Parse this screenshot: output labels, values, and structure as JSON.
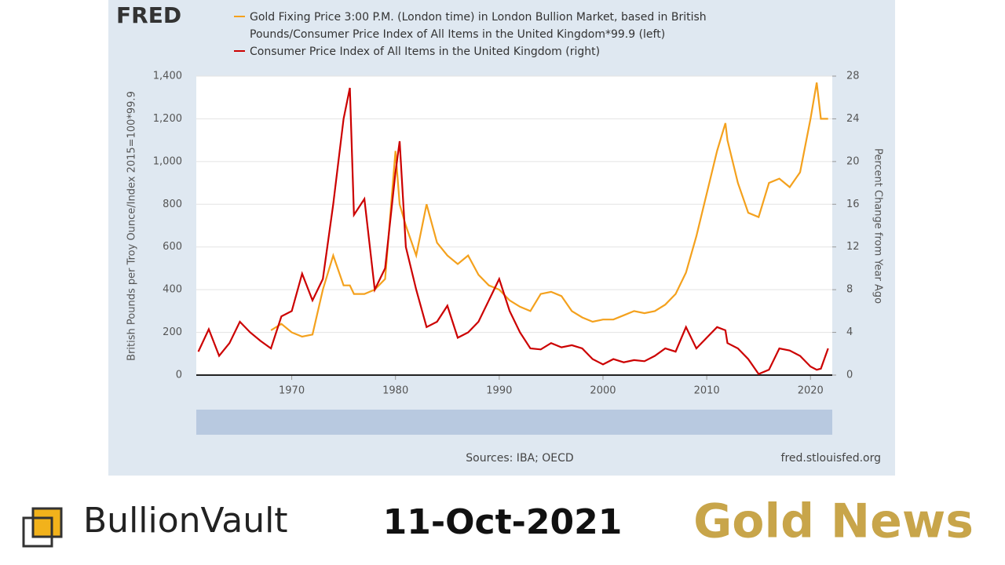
{
  "chart_data": {
    "type": "line",
    "logo": "FRED",
    "xlim": [
      1960.8,
      2022.1
    ],
    "xticks": [
      1970,
      1980,
      1990,
      2000,
      2010,
      2020
    ],
    "ylim": [
      0,
      1400
    ],
    "yticks": [
      0,
      200,
      400,
      600,
      800,
      {
        "value": 1000,
        "label": "1,000"
      },
      {
        "value": 1200,
        "label": "1,200"
      },
      {
        "value": 1400,
        "label": "1,400"
      }
    ],
    "y2lim": [
      0,
      28
    ],
    "y2ticks": [
      0,
      4,
      8,
      12,
      16,
      20,
      24,
      28
    ],
    "ylabel": "British Pounds per Troy Ounce/Index 2015=100*99.9",
    "y2label": "Percent Change from Year Ago",
    "x": [
      1961,
      1962,
      1963,
      1964,
      1965,
      1966,
      1967,
      1968,
      1969,
      1970,
      1971,
      1972,
      1973,
      1974,
      1975,
      1975.6,
      1976,
      1977,
      1978,
      1979,
      1980,
      1980.4,
      1981,
      1982,
      1983,
      1984,
      1985,
      1986,
      1987,
      1988,
      1989,
      1990,
      1991,
      1992,
      1993,
      1994,
      1995,
      1996,
      1997,
      1998,
      1999,
      2000,
      2001,
      2002,
      2003,
      2004,
      2005,
      2006,
      2007,
      2008,
      2009,
      2010,
      2011,
      2011.8,
      2012,
      2013,
      2014,
      2015,
      2016,
      2017,
      2018,
      2019,
      2020,
      2020.6,
      2021,
      2021.7
    ],
    "series": [
      {
        "name": "Gold Fixing Price 3:00 P.M. (London time) in London Bullion Market, based in British Pounds/Consumer Price Index of All Items in the United Kingdom*99.9 (left)",
        "color": "#f4a11d",
        "axis": "y",
        "values": [
          null,
          null,
          null,
          null,
          null,
          null,
          null,
          210,
          240,
          200,
          180,
          190,
          400,
          560,
          420,
          420,
          380,
          380,
          400,
          450,
          1050,
          800,
          700,
          560,
          800,
          620,
          560,
          520,
          560,
          470,
          420,
          400,
          350,
          320,
          300,
          380,
          390,
          370,
          300,
          270,
          250,
          260,
          260,
          280,
          300,
          290,
          300,
          330,
          380,
          480,
          650,
          850,
          1050,
          1180,
          1100,
          900,
          760,
          740,
          900,
          920,
          880,
          950,
          1200,
          1370,
          1200,
          1200
        ]
      },
      {
        "name": "Consumer Price Index of All Items in the United Kingdom (right)",
        "color": "#cc0000",
        "axis": "y2",
        "values": [
          2.2,
          4.3,
          1.8,
          3.0,
          5.0,
          4.0,
          3.2,
          2.5,
          5.5,
          6.0,
          9.5,
          7.0,
          9.0,
          16.0,
          24.0,
          26.9,
          15.0,
          16.5,
          8.0,
          10.0,
          19.0,
          21.9,
          12.0,
          8.0,
          4.5,
          5.0,
          6.5,
          3.5,
          4.0,
          5.0,
          7.0,
          9.0,
          6.0,
          4.0,
          2.5,
          2.4,
          3.0,
          2.6,
          2.8,
          2.5,
          1.5,
          1.0,
          1.5,
          1.2,
          1.4,
          1.3,
          1.8,
          2.5,
          2.2,
          4.5,
          2.5,
          3.5,
          4.5,
          4.2,
          3.0,
          2.5,
          1.5,
          0.1,
          0.5,
          2.5,
          2.3,
          1.8,
          0.8,
          0.5,
          0.6,
          2.5
        ]
      }
    ],
    "grid": true,
    "source": "Sources: IBA; OECD",
    "site": "fred.stlouisfed.org"
  },
  "footer": {
    "brand": "BullionVault",
    "date": "11-Oct-2021",
    "tagline": "Gold News"
  }
}
